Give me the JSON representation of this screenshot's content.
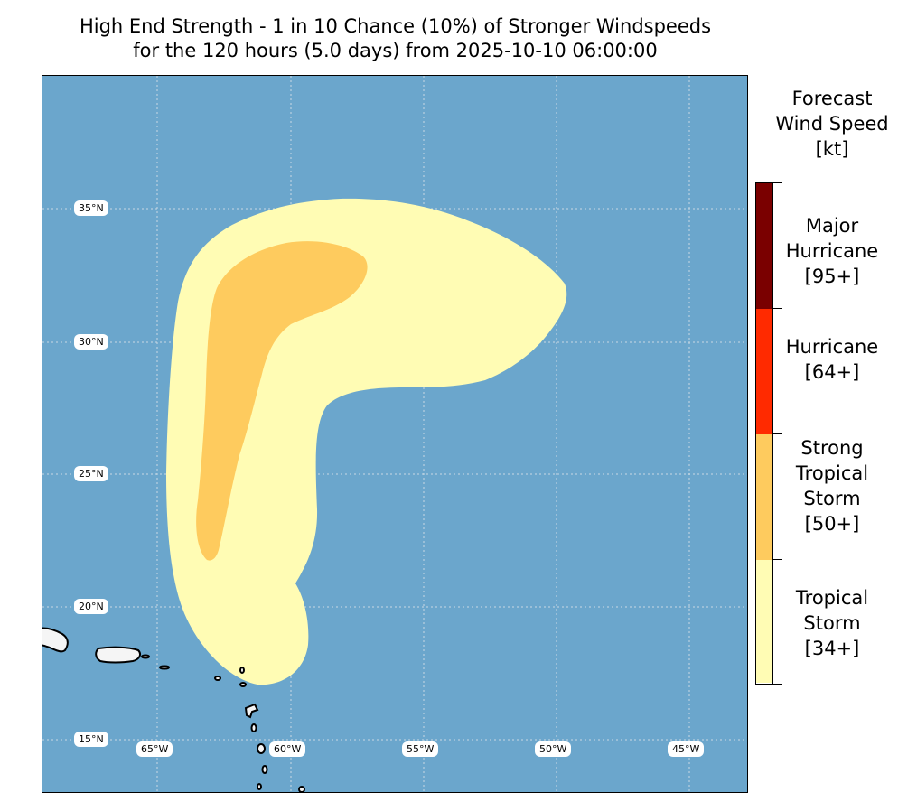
{
  "title": {
    "line1": "High End Strength - 1 in 10 Chance (10%) of Stronger Windspeeds",
    "line2": "for the 120 hours (5.0 days) from 2025-10-10 06:00:00"
  },
  "legend": {
    "title_line1": "Forecast",
    "title_line2": "Wind Speed",
    "title_line3": "[kt]",
    "categories": [
      {
        "line1": "Major",
        "line2": "Hurricane",
        "line3": "[95+]",
        "color": "#7a0000"
      },
      {
        "line1": "Hurricane",
        "line2": "[64+]",
        "color": "#ff2a00"
      },
      {
        "line1": "Strong",
        "line2": "Tropical",
        "line3": "Storm",
        "line4": "[50+]",
        "color": "#fecb5e"
      },
      {
        "line1": "Tropical",
        "line2": "Storm",
        "line3": "[34+]",
        "color": "#fffcb4"
      }
    ]
  },
  "map": {
    "ocean_color": "#6ba6cc",
    "land_color": "#f5f5f5",
    "lat_labels": [
      "35°N",
      "30°N",
      "25°N",
      "20°N",
      "15°N"
    ],
    "lon_labels": [
      "65°W",
      "60°W",
      "55°W",
      "50°W",
      "45°W"
    ]
  }
}
